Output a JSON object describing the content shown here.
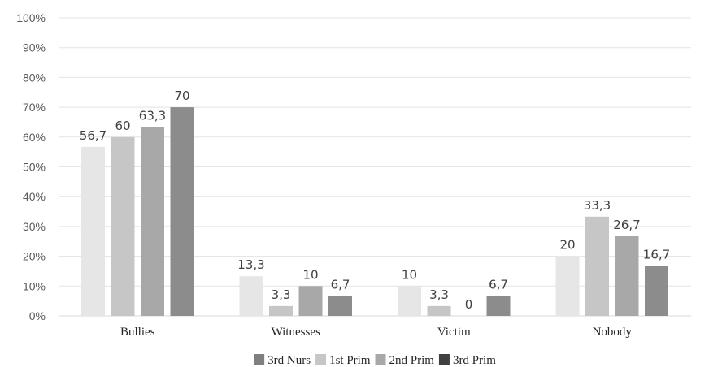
{
  "chart_data": {
    "type": "bar",
    "categories": [
      "Bullies",
      "Witnesses",
      "Victim",
      "Nobody"
    ],
    "y_tick_labels": [
      "0%",
      "10%",
      "20%",
      "30%",
      "40%",
      "50%",
      "60%",
      "70%",
      "80%",
      "90%",
      "100%"
    ],
    "ylim": [
      0,
      100
    ],
    "grid": true,
    "legend_position": "bottom",
    "series": [
      {
        "name": "3rd Nurs",
        "values": [
          56.7,
          13.3,
          10,
          20
        ],
        "labels": [
          "56,7",
          "13,3",
          "10",
          "20"
        ],
        "bar_color": "#e6e6e6",
        "legend_color": "#7f7f7f"
      },
      {
        "name": "1st Prim",
        "values": [
          60,
          3.3,
          3.3,
          33.3
        ],
        "labels": [
          "60",
          "3,3",
          "3,3",
          "33,3"
        ],
        "bar_color": "#c6c6c6",
        "legend_color": "#c6c6c6"
      },
      {
        "name": "2nd Prim",
        "values": [
          63.3,
          10,
          0,
          26.7
        ],
        "labels": [
          "63,3",
          "10",
          "0",
          "26,7"
        ],
        "bar_color": "#a8a8a8",
        "legend_color": "#a8a8a8"
      },
      {
        "name": "3rd Prim",
        "values": [
          70,
          6.7,
          6.7,
          16.7
        ],
        "labels": [
          "70",
          "6,7",
          "6,7",
          "16,7"
        ],
        "bar_color": "#8c8c8c",
        "legend_color": "#404040"
      }
    ]
  }
}
